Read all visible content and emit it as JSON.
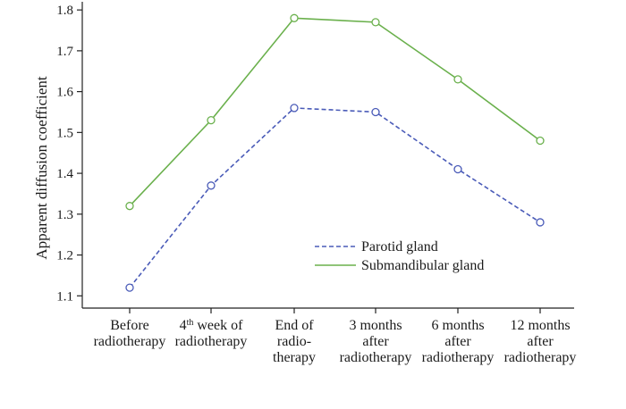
{
  "chart_data": {
    "type": "line",
    "title": "",
    "xlabel": "",
    "ylabel": "Apparent diffusion coefficient",
    "ylim": [
      1.07,
      1.82
    ],
    "yticks": [
      "1.1",
      "1.2",
      "1.3",
      "1.4",
      "1.5",
      "1.6",
      "1.7",
      "1.8"
    ],
    "grid": false,
    "legend_position": "bottom-right",
    "categories": [
      [
        "Before",
        "radiotherapy"
      ],
      [
        "4th week of",
        "radiotherapy"
      ],
      [
        "End of",
        "radio-",
        "therapy"
      ],
      [
        "3 months",
        "after",
        "radiotherapy"
      ],
      [
        "6 months",
        "after",
        "radiotherapy"
      ],
      [
        "12 months",
        "after",
        "radiotherapy"
      ]
    ],
    "series": [
      {
        "name": "Parotid gland",
        "values": [
          1.12,
          1.37,
          1.56,
          1.55,
          1.41,
          1.28
        ],
        "color": "#4a5bb8",
        "line_style": "dashed",
        "marker": "open-circle"
      },
      {
        "name": "Submandibular gland",
        "values": [
          1.32,
          1.53,
          1.78,
          1.77,
          1.63,
          1.48
        ],
        "color": "#6ab04c",
        "line_style": "solid",
        "marker": "open-circle"
      }
    ]
  }
}
